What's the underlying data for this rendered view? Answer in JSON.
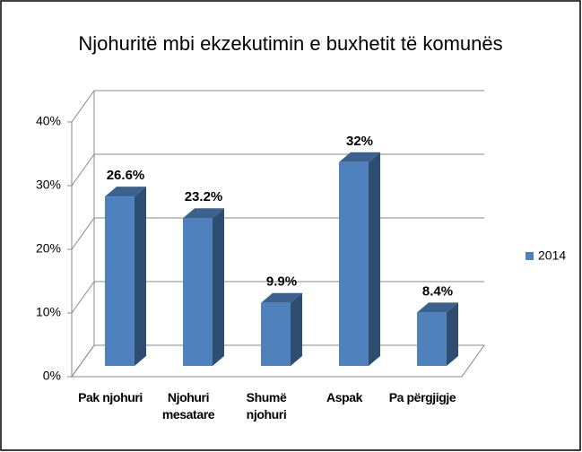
{
  "chart_data": {
    "type": "bar3d",
    "title": "Njohuritë mbi ekzekutimin e buxhetit të komunës",
    "categories": [
      "Pak njohuri",
      "Njohuri mesatare",
      "Shumë njohuri",
      "Aspak",
      "Pa përgjigje"
    ],
    "series": [
      {
        "name": "2014",
        "color": "#4f81bd",
        "values": [
          26.6,
          23.2,
          9.9,
          32,
          8.4
        ],
        "value_labels": [
          "26.6%",
          "23.2%",
          "9.9%",
          "32%",
          "8.4%"
        ]
      }
    ],
    "ylim": [
      0,
      40
    ],
    "yticks": [
      {
        "value": 0,
        "label": "0%"
      },
      {
        "value": 10,
        "label": "10%"
      },
      {
        "value": 20,
        "label": "20%"
      },
      {
        "value": 30,
        "label": "30%"
      },
      {
        "value": 40,
        "label": "40%"
      }
    ],
    "grid": true,
    "legend": "right"
  }
}
